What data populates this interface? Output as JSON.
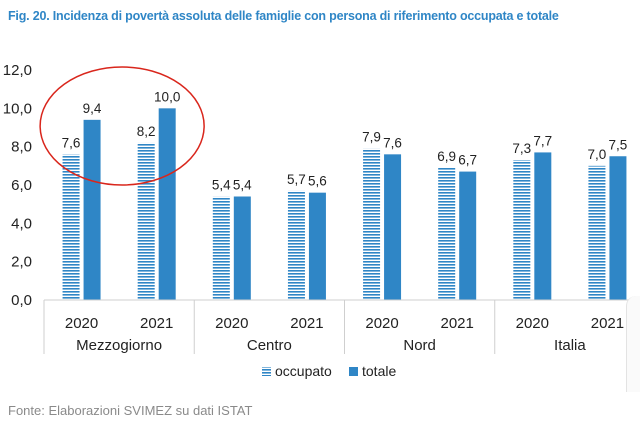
{
  "page": {
    "title": "Fig. 20. Incidenza di povertà assoluta delle famiglie con persona di riferimento occupata e totale",
    "source": "Fonte: Elaborazioni SVIMEZ su dati ISTAT"
  },
  "colors": {
    "totale": "#2f86c6",
    "occupato": "#2f86c6",
    "highlight_circle": "#d9261c",
    "title": "#2f86c6"
  },
  "chart_data": {
    "type": "bar",
    "title": "Fig. 20. Incidenza di povertà assoluta delle famiglie con persona di riferimento occupata e totale",
    "xlabel": "",
    "ylabel": "",
    "ylim": [
      0,
      12
    ],
    "yticks": [
      "0,0",
      "2,0",
      "4,0",
      "6,0",
      "8,0",
      "10,0",
      "12,0"
    ],
    "grid": false,
    "legend_position": "bottom-center",
    "groups": [
      {
        "label": "Mezzogiorno",
        "categories": [
          "2020",
          "2021"
        ]
      },
      {
        "label": "Centro",
        "categories": [
          "2020",
          "2021"
        ]
      },
      {
        "label": "Nord",
        "categories": [
          "2020",
          "2021"
        ]
      },
      {
        "label": "Italia",
        "categories": [
          "2020",
          "2021"
        ]
      }
    ],
    "series": [
      {
        "name": "occupato",
        "pattern": "horizontal-stripes",
        "values": [
          7.6,
          8.2,
          5.4,
          5.7,
          7.9,
          6.9,
          7.3,
          7.0
        ],
        "labels": [
          "7,6",
          "8,2",
          "5,4",
          "5,7",
          "7,9",
          "6,9",
          "7,3",
          "7,0"
        ]
      },
      {
        "name": "totale",
        "pattern": "solid",
        "values": [
          9.4,
          10.0,
          5.4,
          5.6,
          7.6,
          6.7,
          7.7,
          7.5
        ],
        "labels": [
          "9,4",
          "10,0",
          "5,4",
          "5,6",
          "7,6",
          "6,7",
          "7,7",
          "7,5"
        ]
      }
    ],
    "annotations": [
      {
        "type": "ellipse",
        "target_group": "Mezzogiorno",
        "color": "#d9261c"
      }
    ]
  }
}
